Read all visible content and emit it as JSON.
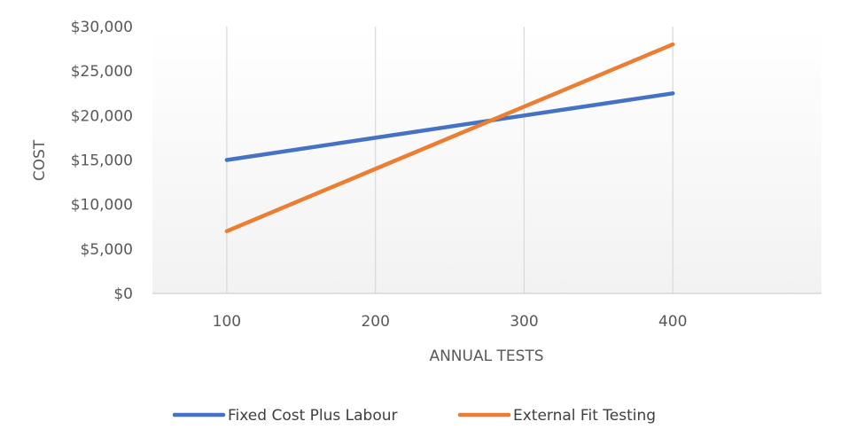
{
  "chart_data": {
    "type": "line",
    "title": "",
    "xlabel": "ANNUAL TESTS",
    "ylabel": "COST",
    "categories": [
      "100",
      "200",
      "300",
      "400"
    ],
    "x_range": [
      50,
      500
    ],
    "ylim": [
      0,
      30000
    ],
    "yticks": [
      0,
      5000,
      10000,
      15000,
      20000,
      25000,
      30000
    ],
    "ytick_labels": [
      "$0",
      "$5,000",
      "$10,000",
      "$15,000",
      "$20,000",
      "$25,000",
      "$30,000"
    ],
    "grid": "vertical",
    "legend": "bottom",
    "series": [
      {
        "name": "Fixed Cost Plus Labour",
        "color": "#4472C4",
        "values": [
          15000,
          17500,
          20000,
          22500
        ]
      },
      {
        "name": "External Fit Testing",
        "color": "#ED7D31",
        "values": [
          7000,
          14000,
          21000,
          28000
        ]
      }
    ]
  }
}
